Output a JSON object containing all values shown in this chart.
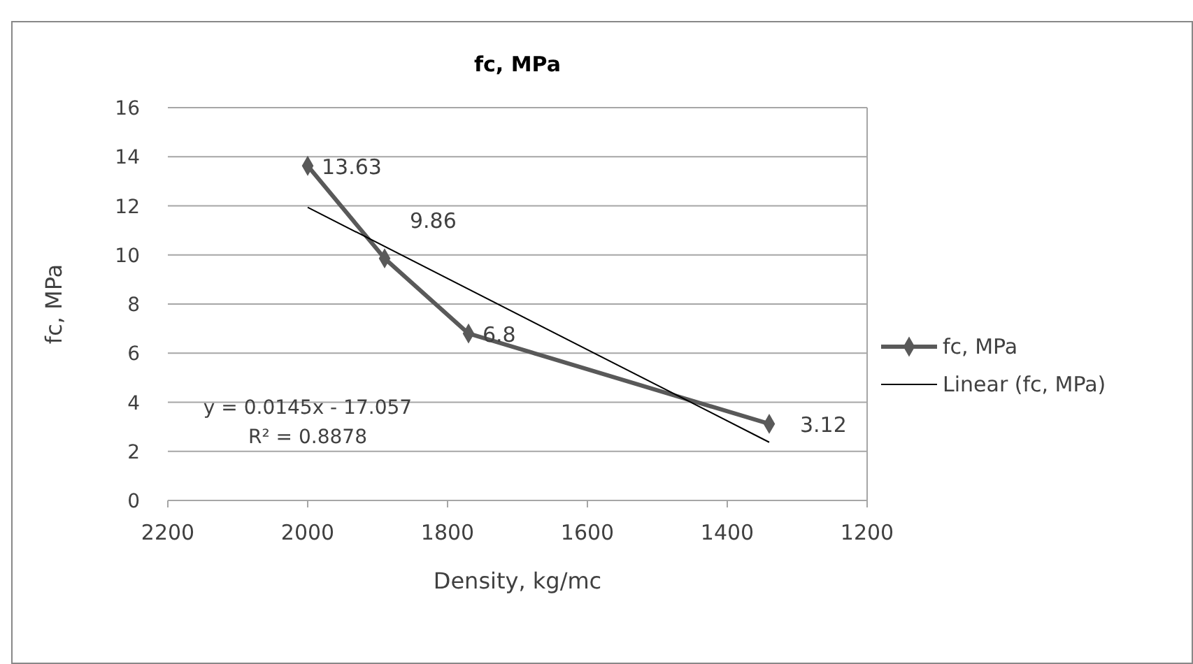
{
  "chart_data": {
    "type": "line",
    "title": "fc, MPa",
    "xlabel": "Density, kg/mc",
    "ylabel": "fc, MPa",
    "xlim": [
      2200,
      1200
    ],
    "xticks": [
      2200,
      2000,
      1800,
      1600,
      1400,
      1200
    ],
    "ylim": [
      0,
      16
    ],
    "yticks": [
      0,
      2,
      4,
      6,
      8,
      10,
      12,
      14,
      16
    ],
    "grid": "y",
    "legend": "right",
    "series": [
      {
        "name": "fc, MPa",
        "color": "#595959",
        "x": [
          2000,
          1890,
          1770,
          1340
        ],
        "values": [
          13.63,
          9.86,
          6.8,
          3.12
        ],
        "marker": "diamond",
        "data_labels": true
      },
      {
        "name": "Linear (fc, MPa)",
        "color": "#000000",
        "x": [
          2000,
          1340
        ],
        "values": [
          11.94,
          2.37
        ],
        "marker": "none",
        "data_labels": false
      }
    ],
    "annotations": [
      "y = 0.0145x - 17.057",
      "R² = 0.8878"
    ]
  }
}
